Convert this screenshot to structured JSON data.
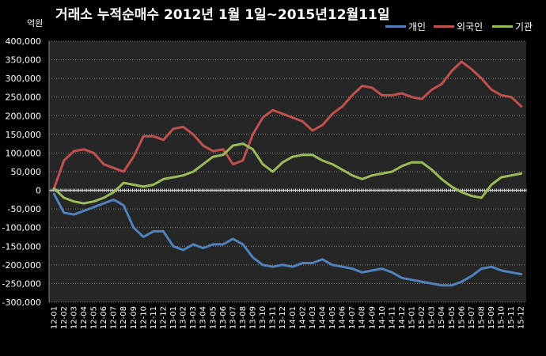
{
  "chart_data": {
    "type": "line",
    "title": "거래소  누적순매수 2012년 1월 1일~2015년12월11일",
    "unit_label": "억원",
    "ylim": [
      -300000,
      400000
    ],
    "yticks": [
      400000,
      350000,
      300000,
      250000,
      200000,
      150000,
      100000,
      50000,
      0,
      -50000,
      -100000,
      -150000,
      -200000,
      -250000,
      -300000
    ],
    "ytick_labels": [
      "400,000",
      "350,000",
      "300,000",
      "250,000",
      "200,000",
      "150,000",
      "100,000",
      "50,000",
      "0",
      "-50,000",
      "-100,000",
      "-150,000",
      "-200,000",
      "-250,000",
      "-300,000"
    ],
    "categories": [
      "12-01",
      "12-02",
      "12-03",
      "12-04",
      "12-05",
      "12-06",
      "12-07",
      "12-08",
      "12-09",
      "12-10",
      "12-11",
      "12-12",
      "13-01",
      "13-02",
      "13-03",
      "13-04",
      "13-05",
      "13-06",
      "13-07",
      "13-08",
      "13-09",
      "13-10",
      "13-11",
      "13-12",
      "14-01",
      "14-02",
      "14-03",
      "14-04",
      "14-05",
      "14-06",
      "14-07",
      "14-08",
      "14-09",
      "14-10",
      "14-11",
      "14-12",
      "15-01",
      "15-02",
      "15-03",
      "15-04",
      "15-05",
      "15-06",
      "15-07",
      "15-08",
      "15-09",
      "15-10",
      "15-11",
      "15-12"
    ],
    "grid": true,
    "legend_position": "top-right",
    "series": [
      {
        "name": "개인",
        "color": "#4F81BD",
        "values": [
          -10000,
          -60000,
          -65000,
          -55000,
          -45000,
          -35000,
          -25000,
          -40000,
          -100000,
          -125000,
          -110000,
          -110000,
          -150000,
          -160000,
          -145000,
          -155000,
          -145000,
          -145000,
          -130000,
          -145000,
          -180000,
          -200000,
          -205000,
          -200000,
          -205000,
          -195000,
          -195000,
          -185000,
          -200000,
          -205000,
          -210000,
          -220000,
          -215000,
          -210000,
          -220000,
          -235000,
          -240000,
          -245000,
          -250000,
          -255000,
          -255000,
          -245000,
          -230000,
          -210000,
          -205000,
          -215000,
          -220000,
          -225000
        ]
      },
      {
        "name": "외국인",
        "color": "#C0504D",
        "values": [
          5000,
          80000,
          105000,
          110000,
          100000,
          70000,
          60000,
          50000,
          90000,
          145000,
          145000,
          135000,
          165000,
          170000,
          150000,
          120000,
          105000,
          110000,
          70000,
          80000,
          150000,
          195000,
          215000,
          205000,
          195000,
          185000,
          160000,
          175000,
          205000,
          225000,
          255000,
          280000,
          275000,
          255000,
          255000,
          260000,
          250000,
          245000,
          270000,
          285000,
          320000,
          345000,
          325000,
          300000,
          270000,
          255000,
          250000,
          225000
        ]
      },
      {
        "name": "기관",
        "color": "#9BBB59",
        "values": [
          5000,
          -20000,
          -30000,
          -35000,
          -30000,
          -20000,
          -5000,
          20000,
          15000,
          10000,
          15000,
          30000,
          35000,
          40000,
          50000,
          70000,
          90000,
          95000,
          120000,
          125000,
          110000,
          70000,
          50000,
          75000,
          90000,
          95000,
          95000,
          80000,
          70000,
          55000,
          40000,
          30000,
          40000,
          45000,
          50000,
          65000,
          75000,
          75000,
          55000,
          30000,
          10000,
          -5000,
          -15000,
          -20000,
          15000,
          35000,
          40000,
          45000
        ]
      }
    ]
  }
}
